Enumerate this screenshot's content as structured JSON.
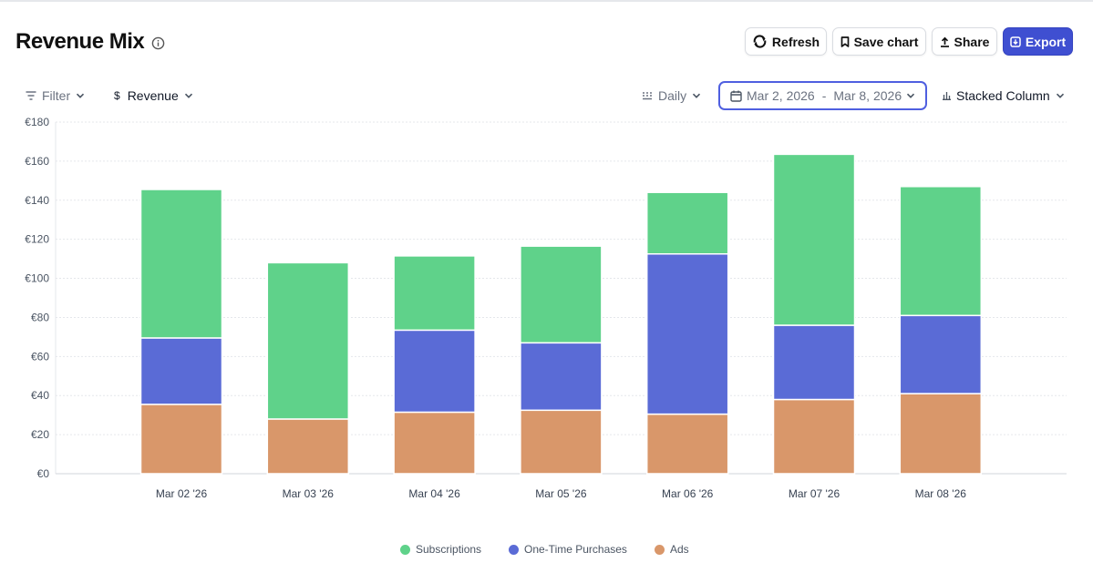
{
  "header": {
    "title": "Revenue Mix",
    "refresh_label": "Refresh",
    "save_label": "Save chart",
    "share_label": "Share",
    "export_label": "Export"
  },
  "toolbar": {
    "filter_label": "Filter",
    "metric_label": "Revenue",
    "metric_symbol": "$",
    "granularity_label": "Daily",
    "date_range_start": "Mar 2, 2026",
    "date_range_sep": "-",
    "date_range_end": "Mar 8, 2026",
    "chart_type_label": "Stacked Column"
  },
  "colors": {
    "subscriptions": "#5fd28a",
    "one_time": "#5a6bd6",
    "ads": "#d9976a",
    "accent": "#3f4fd1"
  },
  "chart_data": {
    "type": "bar",
    "stacked": true,
    "categories": [
      "Mar 02 '26",
      "Mar 03 '26",
      "Mar 04 '26",
      "Mar 05 '26",
      "Mar 06 '26",
      "Mar 07 '26",
      "Mar 08 '26"
    ],
    "series": [
      {
        "name": "Ads",
        "color": "#d9976a",
        "values": [
          35.5,
          28,
          31.5,
          32.5,
          30.5,
          38,
          41
        ]
      },
      {
        "name": "One-Time Purchases",
        "color": "#5a6bd6",
        "values": [
          34,
          0,
          42,
          34.5,
          82,
          38,
          40
        ]
      },
      {
        "name": "Subscriptions",
        "color": "#5fd28a",
        "values": [
          76,
          80,
          38,
          49.5,
          31.5,
          87.5,
          66
        ]
      }
    ],
    "ylim": [
      0,
      180
    ],
    "yticks": [
      "€0",
      "€20",
      "€40",
      "€60",
      "€80",
      "€100",
      "€120",
      "€140",
      "€160",
      "€180"
    ],
    "ytick_values": [
      0,
      20,
      40,
      60,
      80,
      100,
      120,
      140,
      160,
      180
    ],
    "grid": true,
    "legend_position": "bottom-center",
    "legend": [
      "Subscriptions",
      "One-Time Purchases",
      "Ads"
    ]
  }
}
